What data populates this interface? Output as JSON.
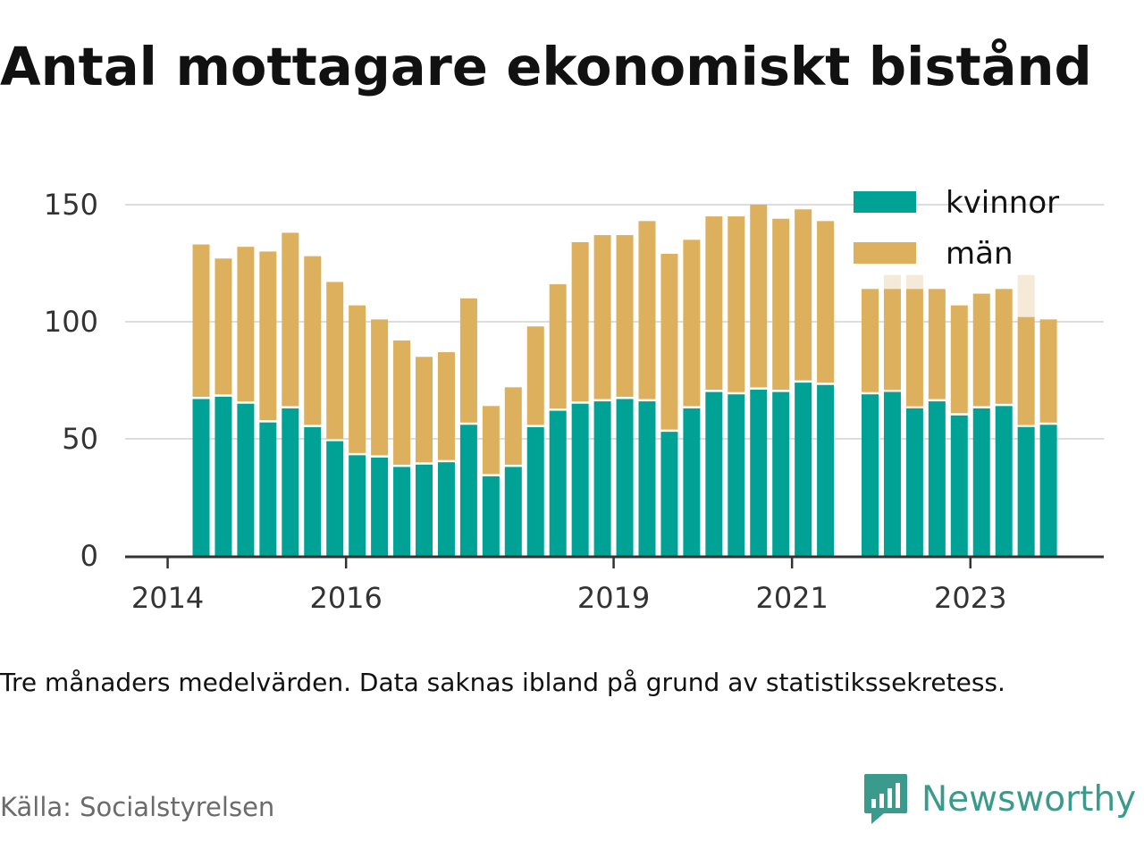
{
  "header": {
    "title": "Antal mottagare ekonomiskt bistånd"
  },
  "footer": {
    "note": "Tre månaders medelvärden. Data saknas ibland på grund av statistikssekretess.",
    "source": "Källa: Socialstyrelsen",
    "brand": "Newsworthy"
  },
  "colors": {
    "kvinnor": "#00a296",
    "man": "#dcb05c",
    "placeholder": "#f5ead8",
    "grid": "#dddddd",
    "axis": "#333333",
    "brand": "#3a9a8c"
  },
  "chart_data": {
    "type": "bar",
    "stacked": true,
    "legend": {
      "position": "top-right",
      "entries": [
        "kvinnor",
        "män"
      ]
    },
    "x_ticks": [
      "2014",
      "2016",
      "2019",
      "2021",
      "2023"
    ],
    "y_ticks": [
      "0",
      "50",
      "100",
      "150"
    ],
    "ylim": [
      0,
      150
    ],
    "grid": true,
    "title": "",
    "xlabel": "",
    "ylabel": "",
    "categories": [
      "2014 Q2",
      "2014 Q3",
      "2014 Q4",
      "2015 Q1",
      "2015 Q2",
      "2015 Q3",
      "2015 Q4",
      "2016 Q1",
      "2016 Q2",
      "2016 Q3",
      "2016 Q4",
      "2017 Q1",
      "2017 Q2",
      "2017 Q3",
      "2017 Q4",
      "2018 Q1",
      "2018 Q2",
      "2018 Q3",
      "2018 Q4",
      "2019 Q1",
      "2019 Q2",
      "2019 Q3",
      "2019 Q4",
      "2020 Q1",
      "2020 Q2",
      "2020 Q3",
      "2020 Q4",
      "2021 Q1",
      "2021 Q2",
      "2021 Q3",
      "2021 Q4",
      "2022 Q1",
      "2022 Q2",
      "2022 Q3",
      "2022 Q4",
      "2023 Q1",
      "2023 Q2",
      "2023 Q3",
      "2023 Q4",
      "2024 Q1",
      "2024 Q2"
    ],
    "series": [
      {
        "name": "kvinnor",
        "values": [
          67,
          68,
          65,
          57,
          63,
          55,
          49,
          43,
          42,
          38,
          39,
          40,
          56,
          34,
          38,
          55,
          62,
          65,
          66,
          67,
          66,
          53,
          63,
          70,
          69,
          71,
          70,
          74,
          73,
          null,
          69,
          70,
          63,
          66,
          60,
          63,
          64,
          55,
          56,
          null,
          null
        ]
      },
      {
        "name": "män",
        "values": [
          66,
          59,
          67,
          73,
          75,
          73,
          68,
          64,
          59,
          54,
          46,
          47,
          54,
          30,
          34,
          43,
          54,
          69,
          71,
          70,
          77,
          76,
          72,
          75,
          76,
          79,
          74,
          74,
          70,
          null,
          45,
          44,
          51,
          48,
          47,
          49,
          50,
          47,
          45,
          null,
          null
        ]
      }
    ],
    "missing_placeholder_categories": [
      "2022 Q1",
      "2022 Q2",
      "2023 Q3"
    ],
    "placeholder_top": 120
  }
}
